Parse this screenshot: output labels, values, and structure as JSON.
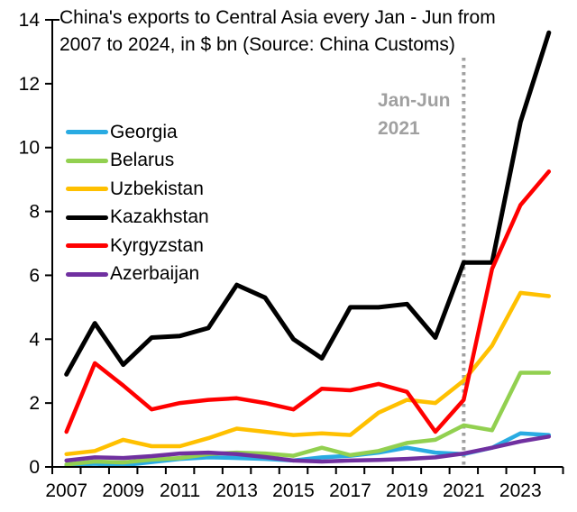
{
  "chart_data": {
    "type": "line",
    "title": "China's exports to Central Asia every Jan - Jun from 2007 to 2024, in $ bn (Source: China Customs)",
    "title_lines": [
      "China's exports to Central Asia every Jan - Jun from",
      "2007 to 2024, in $ bn (Source: China Customs)"
    ],
    "x": [
      2007,
      2008,
      2009,
      2010,
      2011,
      2012,
      2013,
      2014,
      2015,
      2016,
      2017,
      2018,
      2019,
      2020,
      2021,
      2022,
      2023,
      2024
    ],
    "series": [
      {
        "name": "Georgia",
        "color": "#29ABE2",
        "values": [
          0.05,
          0.1,
          0.05,
          0.15,
          0.25,
          0.3,
          0.28,
          0.25,
          0.2,
          0.3,
          0.35,
          0.45,
          0.6,
          0.45,
          0.4,
          0.6,
          1.05,
          1.0
        ]
      },
      {
        "name": "Belarus",
        "color": "#92D050",
        "values": [
          0.08,
          0.17,
          0.14,
          0.23,
          0.28,
          0.4,
          0.45,
          0.42,
          0.35,
          0.6,
          0.37,
          0.5,
          0.75,
          0.85,
          1.3,
          1.15,
          2.95,
          2.95
        ]
      },
      {
        "name": "Uzbekistan",
        "color": "#FFC000",
        "values": [
          0.4,
          0.5,
          0.85,
          0.65,
          0.65,
          0.9,
          1.2,
          1.1,
          1.0,
          1.05,
          1.0,
          1.7,
          2.1,
          2.0,
          2.7,
          3.8,
          5.45,
          5.35
        ]
      },
      {
        "name": "Kazakhstan",
        "color": "#000000",
        "values": [
          2.9,
          4.5,
          3.2,
          4.05,
          4.1,
          4.35,
          5.7,
          5.3,
          4.0,
          3.4,
          5.0,
          5.0,
          5.1,
          4.05,
          6.4,
          6.4,
          10.8,
          13.6
        ]
      },
      {
        "name": "Kyrgyzstan",
        "color": "#FF0000",
        "values": [
          1.1,
          3.25,
          2.55,
          1.8,
          2.0,
          2.1,
          2.15,
          2.0,
          1.8,
          2.45,
          2.4,
          2.6,
          2.35,
          1.1,
          2.1,
          6.2,
          8.2,
          9.25
        ]
      },
      {
        "name": "Azerbaijan",
        "color": "#7030A0",
        "values": [
          0.2,
          0.3,
          0.28,
          0.34,
          0.42,
          0.45,
          0.4,
          0.31,
          0.2,
          0.17,
          0.2,
          0.22,
          0.25,
          0.3,
          0.42,
          0.6,
          0.8,
          0.95
        ]
      }
    ],
    "ylim": [
      0,
      14
    ],
    "ytick_labels": [
      "0",
      "2",
      "4",
      "6",
      "8",
      "10",
      "12",
      "14"
    ],
    "xtick_labels": [
      "2007",
      "2009",
      "2011",
      "2013",
      "2015",
      "2017",
      "2019",
      "2021",
      "2023"
    ],
    "grid": false,
    "legend_position": "upper-left",
    "axis_color": "#000000",
    "annotation": {
      "lines": [
        "Jan-Jun",
        "2021"
      ],
      "x": 2021,
      "color": "#A0A0A0",
      "style": "dotted-vertical-line"
    }
  }
}
